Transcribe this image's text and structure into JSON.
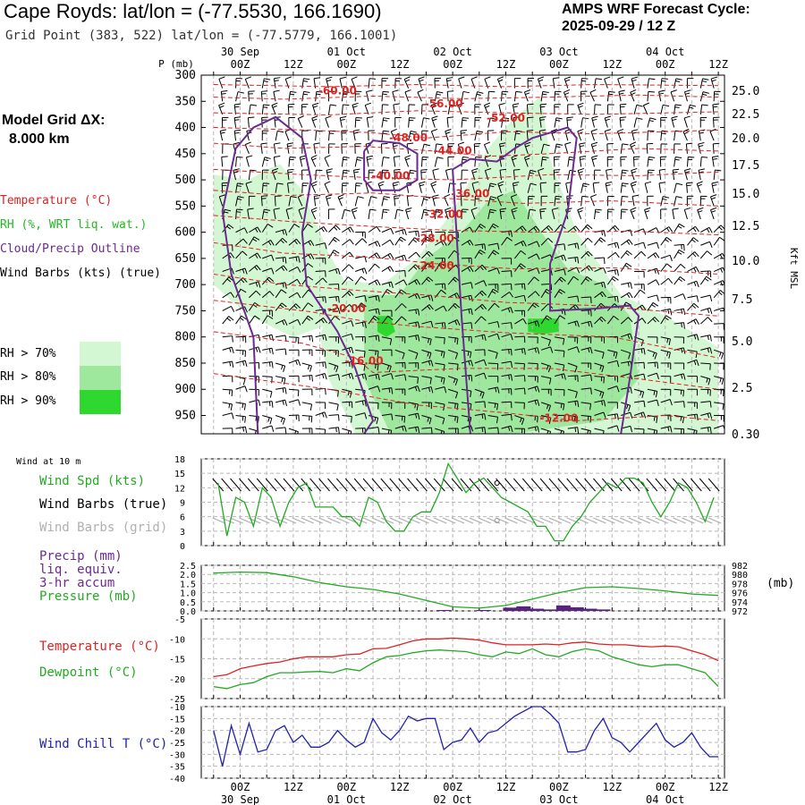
{
  "header": {
    "title": "Cape Royds:  lat/lon = (-77.5530, 166.1690)",
    "subtitle": "Grid Point (383, 522) lat/lon = (-77.5779, 166.1001)",
    "cycle_line1": "AMPS WRF Forecast Cycle:",
    "cycle_line2": "2025-09-29 / 12  Z"
  },
  "left_panel": {
    "model_grid_label": "Model Grid ΔX:",
    "model_grid_value": "8.000 km",
    "legend_items": [
      {
        "text": "Temperature (°C)",
        "color": "#dd2222"
      },
      {
        "text": "RH (%, WRT liq. wat.)",
        "color": "#22bb22"
      },
      {
        "text": "Cloud/Precip Outline",
        "color": "#6a2a90"
      },
      {
        "text": "Wind Barbs (kts) (true)",
        "color": "#000000"
      }
    ],
    "rh_legend": [
      {
        "text": "RH > 70%",
        "color": "#d2f7d2"
      },
      {
        "text": "RH > 80%",
        "color": "#9ee89e"
      },
      {
        "text": "RH > 90%",
        "color": "#2fd82f"
      }
    ]
  },
  "time_axis": {
    "ticks": [
      "00Z",
      "12Z",
      "00Z",
      "12Z",
      "00Z",
      "12Z",
      "00Z",
      "12Z",
      "00Z",
      "12Z"
    ],
    "dates": [
      "30 Sep",
      "01 Oct",
      "02 Oct",
      "03 Oct",
      "04 Oct"
    ]
  },
  "chart_data": [
    {
      "type": "heatmap",
      "id": "cross_section",
      "ylabel": "P (mb)",
      "ylabel_right": "Kft MSL",
      "y_ticks": [
        300,
        350,
        400,
        450,
        500,
        550,
        600,
        650,
        700,
        750,
        800,
        850,
        900,
        950
      ],
      "y_right_ticks": [
        "25.0",
        "22.5",
        "20.0",
        "17.5",
        "15.0",
        "12.5",
        "10.0",
        "7.5",
        "5.0",
        "2.5",
        "0.30"
      ],
      "ylim": [
        300,
        985
      ],
      "x_range_hours": [
        -6,
        108
      ],
      "temperature_contour_labels": [
        "-60.00",
        "-56.00",
        "-52.00",
        "-48.00",
        "-44.00",
        "-40.00",
        "-36.00",
        "-32.00",
        "-28.00",
        "-24.00",
        "-20.00",
        "-16.00",
        "-12.00"
      ]
    },
    {
      "type": "line",
      "id": "wind",
      "title": "Wind at 10 m",
      "labels": [
        {
          "text": "Wind Spd (kts)",
          "color": "#22aa22"
        },
        {
          "text": "Wind Barbs (true)",
          "color": "#000000"
        },
        {
          "text": "Wind Barbs (grid)",
          "color": "#b0b0b0"
        }
      ],
      "ylim": [
        0,
        18
      ],
      "y_ticks": [
        0,
        3,
        6,
        9,
        12,
        15,
        18
      ],
      "x": [
        -5,
        -3,
        -1,
        1,
        3,
        5,
        7,
        9,
        11,
        13,
        15,
        17,
        19,
        21,
        23,
        25,
        27,
        29,
        31,
        33,
        35,
        37,
        39,
        41,
        43,
        45,
        47,
        49,
        51,
        53,
        55,
        57,
        59,
        61,
        63,
        65,
        67,
        69,
        71,
        73,
        75,
        77,
        79,
        81,
        83,
        85,
        87,
        89,
        91,
        93,
        95,
        97,
        99,
        101,
        103,
        105,
        107
      ],
      "series": [
        {
          "name": "Wind Spd (kts)",
          "color": "#22aa22",
          "values": [
            13,
            2,
            10,
            9,
            4,
            12,
            10,
            4,
            9,
            12,
            13,
            8,
            8,
            8,
            6,
            6,
            4,
            10,
            9,
            5,
            3,
            3,
            6,
            7,
            7,
            11,
            17,
            14,
            11,
            13,
            14,
            12,
            10,
            9,
            8,
            7,
            4,
            4,
            1,
            1,
            4,
            6,
            9,
            11,
            13,
            12,
            14,
            14,
            13,
            9,
            6,
            9,
            13,
            12,
            9,
            5,
            10
          ]
        }
      ],
      "marker": {
        "x": 58,
        "y": 13
      }
    },
    {
      "type": "bar",
      "id": "precip_pressure",
      "labels": [
        {
          "text": "Precip (mm)",
          "color": "#6a2a90"
        },
        {
          "text": "liq. equiv.",
          "color": "#6a2a90"
        },
        {
          "text": "3-hr accum",
          "color": "#6a2a90"
        },
        {
          "text": "Pressure (mb)",
          "color": "#22aa22"
        }
      ],
      "ylim": [
        0,
        2.5
      ],
      "y_ticks": [
        "0.0",
        "0.5",
        "1.0",
        "1.5",
        "2.0",
        "2.5"
      ],
      "y2lim": [
        972,
        982
      ],
      "y2_ticks": [
        "972",
        "974",
        "976",
        "978",
        "980",
        "982"
      ],
      "y2_unit": "(mb)",
      "x": [
        -6,
        0,
        6,
        12,
        18,
        24,
        30,
        36,
        42,
        48,
        54,
        60,
        66,
        72,
        78,
        84,
        90,
        96,
        102,
        108
      ],
      "series": [
        {
          "name": "Pressure (mb)",
          "color": "#22aa22",
          "values": [
            980.3,
            980.5,
            980.4,
            979.5,
            978.2,
            977.3,
            976.7,
            975.7,
            974.3,
            972.9,
            972.6,
            973.2,
            974.6,
            976.0,
            977.1,
            977.3,
            976.9,
            976.4,
            975.7,
            975.4
          ]
        }
      ],
      "precip_bars": [
        {
          "x": 46,
          "v": 0.05
        },
        {
          "x": 55,
          "v": 0.05
        },
        {
          "x": 61,
          "v": 0.18
        },
        {
          "x": 64,
          "v": 0.25
        },
        {
          "x": 67,
          "v": 0.12
        },
        {
          "x": 70,
          "v": 0.08
        },
        {
          "x": 73,
          "v": 0.3
        },
        {
          "x": 76,
          "v": 0.2
        },
        {
          "x": 79,
          "v": 0.12
        },
        {
          "x": 82,
          "v": 0.08
        }
      ]
    },
    {
      "type": "line",
      "id": "temp_dewpoint",
      "labels": [
        {
          "text": "Temperature (°C)",
          "color": "#dd2222"
        },
        {
          "text": "Dewpoint (°C)",
          "color": "#22aa22"
        }
      ],
      "ylim": [
        -25,
        -5
      ],
      "y_ticks": [
        -5,
        -10,
        -15,
        -20,
        -25
      ],
      "x": [
        -6,
        -3,
        0,
        3,
        6,
        9,
        12,
        15,
        18,
        21,
        24,
        27,
        30,
        33,
        36,
        39,
        42,
        45,
        48,
        51,
        54,
        57,
        60,
        63,
        66,
        69,
        72,
        75,
        78,
        81,
        84,
        87,
        90,
        93,
        96,
        99,
        102,
        105,
        108
      ],
      "series": [
        {
          "name": "Temperature (°C)",
          "color": "#dd2222",
          "values": [
            -19.5,
            -19,
            -17.5,
            -16.8,
            -16.2,
            -15.8,
            -15,
            -14.5,
            -14.5,
            -14.5,
            -14,
            -13.8,
            -12.5,
            -12.4,
            -11.5,
            -10.5,
            -10,
            -10,
            -9.8,
            -10,
            -10.3,
            -11,
            -11.5,
            -11.5,
            -11.5,
            -11.3,
            -11.5,
            -11,
            -10.8,
            -11.3,
            -11.5,
            -11.5,
            -11.8,
            -12,
            -11.8,
            -12,
            -13,
            -14,
            -15.5
          ]
        },
        {
          "name": "Dewpoint (°C)",
          "color": "#22aa22",
          "values": [
            -22,
            -22.5,
            -21.5,
            -21,
            -19.5,
            -18.5,
            -18.5,
            -18.3,
            -18.2,
            -18.5,
            -17.5,
            -18,
            -16,
            -14.5,
            -14.2,
            -13.5,
            -13,
            -12.8,
            -13,
            -13.2,
            -14,
            -14.5,
            -13.3,
            -13.7,
            -12.5,
            -14,
            -14.5,
            -13.2,
            -12.5,
            -13,
            -14.5,
            -15.5,
            -16.5,
            -17,
            -16.5,
            -16.5,
            -17.5,
            -18.5,
            -22
          ]
        }
      ]
    },
    {
      "type": "line",
      "id": "wind_chill",
      "labels": [
        {
          "text": "Wind Chill T (°C)",
          "color": "#2222aa"
        }
      ],
      "ylim": [
        -40,
        -10
      ],
      "y_ticks": [
        -10,
        -15,
        -20,
        -25,
        -30,
        -35,
        -40
      ],
      "x": [
        -6,
        -4,
        -2,
        0,
        2,
        4,
        6,
        8,
        10,
        12,
        14,
        16,
        18,
        20,
        22,
        24,
        26,
        28,
        30,
        32,
        34,
        36,
        38,
        40,
        42,
        44,
        46,
        48,
        50,
        52,
        54,
        56,
        58,
        60,
        62,
        64,
        66,
        68,
        70,
        72,
        74,
        76,
        78,
        80,
        82,
        84,
        86,
        88,
        90,
        92,
        94,
        96,
        98,
        100,
        102,
        104,
        106,
        108
      ],
      "series": [
        {
          "name": "Wind Chill T (°C)",
          "color": "#2222aa",
          "values": [
            -20,
            -35,
            -18,
            -30,
            -17,
            -29,
            -28,
            -20,
            -18,
            -25,
            -22,
            -27,
            -27,
            -25,
            -20,
            -24,
            -27,
            -25,
            -15,
            -21,
            -24,
            -20,
            -14,
            -16,
            -15,
            -15,
            -28,
            -25,
            -24,
            -19,
            -25,
            -21,
            -20,
            -17,
            -14,
            -12,
            -10,
            -10,
            -13,
            -17,
            -29,
            -29,
            -28,
            -20,
            -15,
            -23,
            -25,
            -29,
            -25,
            -21,
            -17,
            -24,
            -27,
            -25,
            -21,
            -27,
            -31,
            -31
          ]
        }
      ]
    }
  ]
}
